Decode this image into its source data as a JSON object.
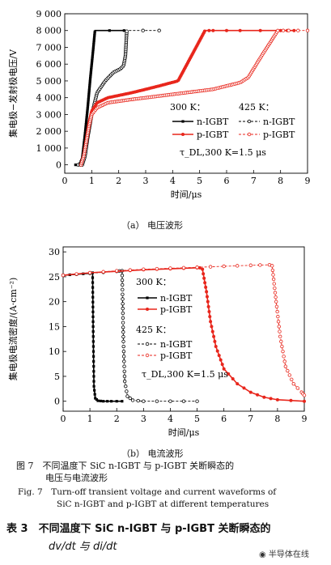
{
  "chart_data": [
    {
      "type": "line",
      "title": "",
      "subcaption": "（a） 电压波形",
      "xlabel": "时间/μs",
      "ylabel": "集电极−发射极电压/V",
      "xlim": [
        0,
        9
      ],
      "ylim": [
        -500,
        9000
      ],
      "xticks": [
        "0",
        "1",
        "2",
        "3",
        "4",
        "5",
        "6",
        "7",
        "8",
        "9"
      ],
      "yticks": [
        "0",
        "1 000",
        "2 000",
        "3 000",
        "4 000",
        "5 000",
        "6 000",
        "7 000",
        "8 000",
        "9 000"
      ],
      "legend_group_300": "300 K：",
      "legend_group_425": "425 K：",
      "annotation": "τ_DL,300 K=1.5 μs",
      "series": [
        {
          "name": "n-IGBT",
          "temp": "300 K",
          "color": "#000000",
          "marker": "filled-square",
          "dashed": false,
          "x": [
            0.4,
            0.55,
            0.65,
            0.75,
            0.85,
            0.95,
            1.05,
            1.12,
            2.2
          ],
          "y": [
            0,
            0,
            400,
            1800,
            3400,
            5200,
            6800,
            8000,
            8000
          ]
        },
        {
          "name": "n-IGBT",
          "temp": "425 K",
          "color": "#000000",
          "marker": "open-circle",
          "dashed": true,
          "x": [
            0.5,
            0.65,
            0.75,
            0.85,
            1.0,
            1.2,
            1.5,
            1.8,
            2.05,
            2.18,
            2.25,
            2.3,
            3.5
          ],
          "y": [
            0,
            0,
            500,
            1600,
            3000,
            4300,
            5000,
            5500,
            5700,
            5900,
            6500,
            8000,
            8000
          ]
        },
        {
          "name": "p-IGBT",
          "temp": "300 K",
          "color": "#e8261c",
          "marker": "filled-circle",
          "dashed": false,
          "x": [
            0.6,
            0.7,
            0.8,
            0.9,
            1.0,
            1.2,
            1.6,
            2.5,
            3.5,
            4.2,
            4.7,
            5.2,
            5.5,
            6.5,
            8.0,
            8.5
          ],
          "y": [
            0,
            500,
            1500,
            2500,
            3200,
            3700,
            4000,
            4300,
            4700,
            5000,
            6500,
            8000,
            8000,
            8000,
            8000,
            8000
          ]
        },
        {
          "name": "p-IGBT",
          "temp": "425 K",
          "color": "#e8261c",
          "marker": "open-circle",
          "dashed": true,
          "x": [
            0.6,
            0.7,
            0.8,
            0.9,
            1.0,
            1.2,
            1.6,
            2.5,
            4.0,
            5.5,
            6.5,
            6.8,
            7.3,
            7.9,
            8.3,
            9.0
          ],
          "y": [
            0,
            500,
            1400,
            2300,
            3000,
            3400,
            3700,
            3900,
            4200,
            4500,
            4900,
            5200,
            6500,
            8000,
            8000,
            8000
          ]
        }
      ]
    },
    {
      "type": "line",
      "title": "",
      "subcaption": "（b） 电流波形",
      "xlabel": "时间/μs",
      "ylabel": "集电极电流密度/(A·cm⁻²)",
      "xlim": [
        0,
        9
      ],
      "ylim": [
        -2,
        31
      ],
      "xticks": [
        "0",
        "1",
        "2",
        "3",
        "4",
        "5",
        "6",
        "7",
        "8",
        "9"
      ],
      "yticks": [
        "0",
        "5",
        "10",
        "15",
        "20",
        "25",
        "30"
      ],
      "legend_group_300": "300 K：",
      "legend_group_425": "425 K：",
      "annotation": "τ_DL,300 K=1.5 μs",
      "series": [
        {
          "name": "n-IGBT",
          "temp": "300 K",
          "color": "#000000",
          "marker": "filled-square",
          "dashed": false,
          "x": [
            0,
            0.5,
            1.0,
            1.1,
            1.12,
            1.15,
            1.2,
            1.3,
            1.5,
            1.8,
            2.2
          ],
          "y": [
            25.3,
            25.5,
            25.7,
            25.8,
            15,
            3,
            0.6,
            0.1,
            0,
            0,
            0
          ]
        },
        {
          "name": "n-IGBT",
          "temp": "425 K",
          "color": "#000000",
          "marker": "open-circle",
          "dashed": true,
          "x": [
            0,
            1.0,
            2.0,
            2.2,
            2.25,
            2.3,
            2.4,
            2.6,
            3.0,
            4.0,
            5.0
          ],
          "y": [
            25.3,
            25.7,
            26.1,
            26.2,
            12,
            4,
            1,
            0.2,
            0,
            0,
            0
          ]
        },
        {
          "name": "p-IGBT",
          "temp": "300 K",
          "color": "#e8261c",
          "marker": "filled-circle",
          "dashed": false,
          "x": [
            0,
            1.0,
            2.0,
            3.0,
            4.0,
            5.0,
            5.1,
            5.2,
            5.35,
            5.5,
            5.7,
            6.0,
            6.5,
            7.0,
            7.5,
            8.0,
            9.0
          ],
          "y": [
            25.3,
            25.8,
            26.1,
            26.4,
            26.6,
            26.8,
            26.8,
            26.5,
            22,
            16,
            11,
            6.5,
            3.5,
            1.8,
            0.8,
            0.3,
            0
          ]
        },
        {
          "name": "p-IGBT",
          "temp": "425 K",
          "color": "#e8261c",
          "marker": "open-circle",
          "dashed": true,
          "x": [
            0,
            1.0,
            2.0,
            3.0,
            4.0,
            5.0,
            6.0,
            7.0,
            7.7,
            7.8,
            7.95,
            8.1,
            8.3,
            8.6,
            8.9,
            9.0
          ],
          "y": [
            25.3,
            25.8,
            26.2,
            26.5,
            26.7,
            26.9,
            27.1,
            27.3,
            27.4,
            27.2,
            20,
            13,
            7,
            3.5,
            1.8,
            1.2
          ]
        }
      ]
    }
  ],
  "captions": {
    "fig_cn_1": "图 7　不同温度下 SiC n-IGBT 与 p-IGBT 关断瞬态的",
    "fig_cn_2": "电压与电流波形",
    "fig_en_1": "Fig. 7　Turn-off transient voltage and current waveforms of",
    "fig_en_2": "SiC n-IGBT and p-IGBT at different temperatures",
    "table_1": "表 3　不同温度下 SiC n-IGBT 与 p-IGBT 关断瞬态的",
    "table_2": "dv/dt 与 di/dt"
  },
  "watermark": "半导体在线"
}
